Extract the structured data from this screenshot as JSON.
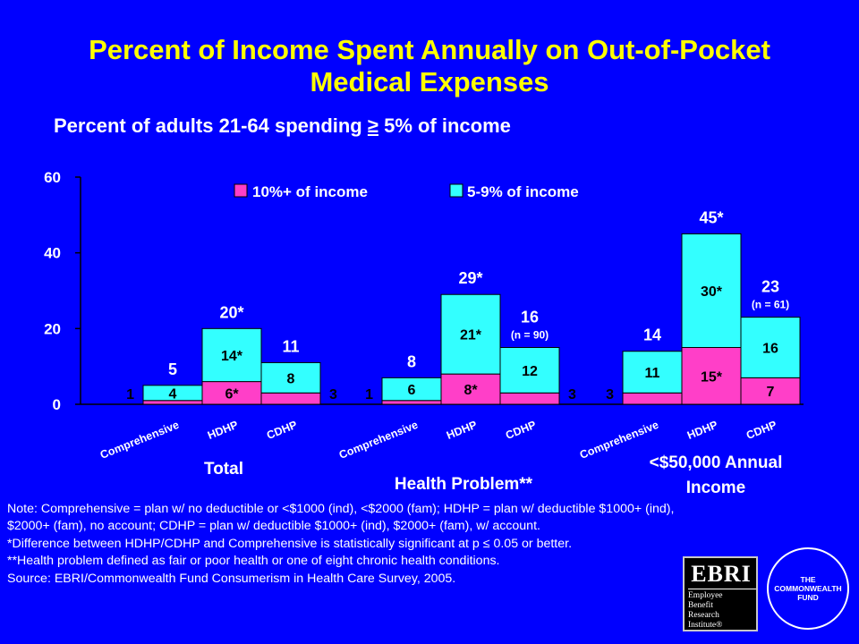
{
  "title": "Percent of Income Spent Annually on Out-of-Pocket Medical Expenses",
  "subtitle_prefix": "Percent of adults 21-64 spending",
  "subtitle_symbol": "≥",
  "subtitle_suffix": "5% of income",
  "colors": {
    "background": "#0000ff",
    "title": "#ffff00",
    "series_10plus": "#ff3fc8",
    "series_5to9": "#33ffff"
  },
  "chart_data": {
    "type": "bar",
    "stacked": true,
    "ylim": [
      0,
      60
    ],
    "yticks": [
      "0",
      "20",
      "40",
      "60"
    ],
    "legend_position": "top",
    "series": [
      {
        "name": "10%+ of income",
        "color": "#ff3fc8"
      },
      {
        "name": "5-9% of income",
        "color": "#33ffff"
      }
    ],
    "groups": [
      {
        "label": "Total",
        "bars": [
          {
            "category": "Comprehensive",
            "v10": 1,
            "v59": 4,
            "total": 5,
            "label10": "1",
            "label59": "4",
            "totalLabel": "5",
            "n": ""
          },
          {
            "category": "HDHP",
            "v10": 6,
            "v59": 14,
            "total": 20,
            "label10": "6*",
            "label59": "14*",
            "totalLabel": "20*",
            "n": ""
          },
          {
            "category": "CDHP",
            "v10": 3,
            "v59": 8,
            "total": 11,
            "label10": "3",
            "label59": "8",
            "totalLabel": "11",
            "n": ""
          }
        ]
      },
      {
        "label": "Health Problem**",
        "bars": [
          {
            "category": "Comprehensive",
            "v10": 1,
            "v59": 6,
            "total": 8,
            "label10": "1",
            "label59": "6",
            "totalLabel": "8",
            "n": ""
          },
          {
            "category": "HDHP",
            "v10": 8,
            "v59": 21,
            "total": 29,
            "label10": "8*",
            "label59": "21*",
            "totalLabel": "29*",
            "n": ""
          },
          {
            "category": "CDHP",
            "v10": 3,
            "v59": 12,
            "total": 16,
            "label10": "3",
            "label59": "12",
            "totalLabel": "16",
            "n": "(n = 90)"
          }
        ]
      },
      {
        "label": "<$50,000 Annual Income",
        "bars": [
          {
            "category": "Comprehensive",
            "v10": 3,
            "v59": 11,
            "total": 14,
            "label10": "3",
            "label59": "11",
            "totalLabel": "14",
            "n": ""
          },
          {
            "category": "HDHP",
            "v10": 15,
            "v59": 30,
            "total": 45,
            "label10": "15*",
            "label59": "30*",
            "totalLabel": "45*",
            "n": ""
          },
          {
            "category": "CDHP",
            "v10": 7,
            "v59": 16,
            "total": 23,
            "label10": "7",
            "label59": "16",
            "totalLabel": "23",
            "n": "(n = 61)"
          }
        ]
      }
    ]
  },
  "notes": [
    "Note: Comprehensive = plan w/ no deductible or <$1000 (ind), <$2000 (fam); HDHP = plan w/ deductible $1000+ (ind), $2000+ (fam), no account; CDHP = plan w/ deductible $1000+ (ind), $2000+ (fam), w/ account.",
    "*Difference between HDHP/CDHP and Comprehensive is statistically significant at p ≤ 0.05 or better.",
    "**Health problem defined as fair or poor health or one of eight chronic health conditions.",
    "Source: EBRI/Commonwealth Fund Consumerism in Health Care Survey, 2005."
  ],
  "logos": {
    "ebri_abbrev": "EBRI",
    "ebri_name": [
      "Employee",
      "Benefit",
      "Research",
      "Institute®"
    ],
    "commonwealth": [
      "THE",
      "COMMONWEALTH",
      "FUND"
    ]
  }
}
